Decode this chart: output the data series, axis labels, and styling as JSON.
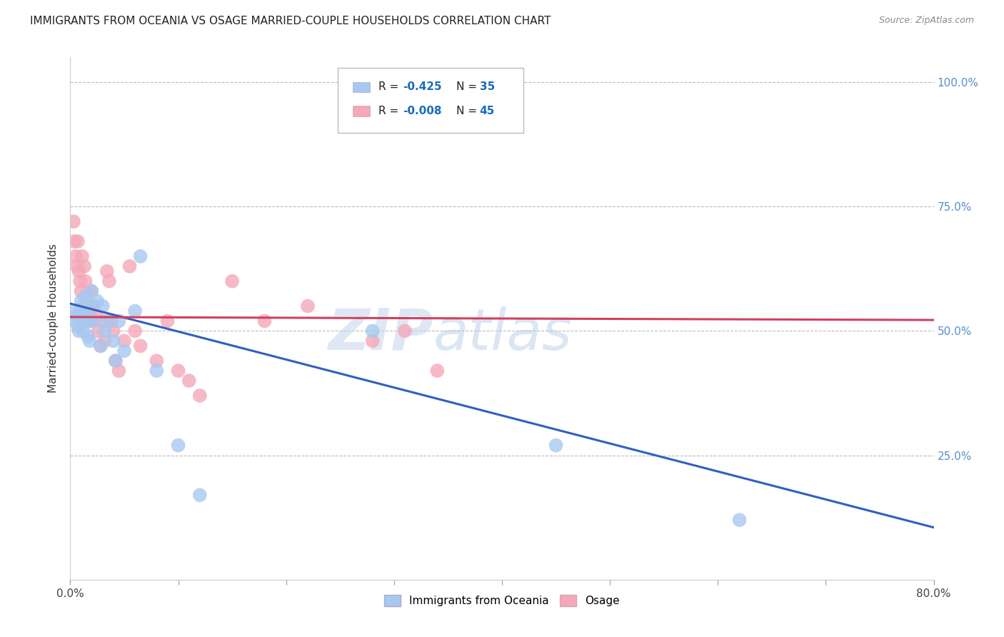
{
  "title": "IMMIGRANTS FROM OCEANIA VS OSAGE MARRIED-COUPLE HOUSEHOLDS CORRELATION CHART",
  "source": "Source: ZipAtlas.com",
  "ylabel": "Married-couple Households",
  "xlim": [
    0.0,
    0.8
  ],
  "ylim": [
    0.0,
    1.05
  ],
  "xticks": [
    0.0,
    0.1,
    0.2,
    0.3,
    0.4,
    0.5,
    0.6,
    0.7,
    0.8
  ],
  "xticklabels": [
    "0.0%",
    "",
    "",
    "",
    "",
    "",
    "",
    "",
    "80.0%"
  ],
  "yticks": [
    0.0,
    0.25,
    0.5,
    0.75,
    1.0
  ],
  "yticklabels_right": [
    "",
    "25.0%",
    "50.0%",
    "75.0%",
    "100.0%"
  ],
  "legend_label1": "Immigrants from Oceania",
  "legend_label2": "Osage",
  "blue_color": "#A8C8F0",
  "pink_color": "#F4A8B8",
  "blue_line_color": "#3060C0",
  "pink_line_color": "#D04060",
  "background_color": "#FFFFFF",
  "grid_color": "#BBBBBB",
  "watermark_zip": "ZIP",
  "watermark_atlas": "atlas",
  "blue_points_x": [
    0.003,
    0.005,
    0.006,
    0.007,
    0.008,
    0.009,
    0.01,
    0.011,
    0.012,
    0.013,
    0.014,
    0.015,
    0.016,
    0.017,
    0.018,
    0.019,
    0.02,
    0.022,
    0.025,
    0.028,
    0.03,
    0.032,
    0.035,
    0.04,
    0.042,
    0.045,
    0.05,
    0.06,
    0.065,
    0.08,
    0.1,
    0.12,
    0.28,
    0.45,
    0.62
  ],
  "blue_points_y": [
    0.54,
    0.52,
    0.53,
    0.51,
    0.5,
    0.54,
    0.56,
    0.52,
    0.5,
    0.55,
    0.57,
    0.53,
    0.49,
    0.52,
    0.48,
    0.55,
    0.58,
    0.52,
    0.56,
    0.47,
    0.55,
    0.5,
    0.52,
    0.48,
    0.44,
    0.52,
    0.46,
    0.54,
    0.65,
    0.42,
    0.27,
    0.17,
    0.5,
    0.27,
    0.12
  ],
  "pink_points_x": [
    0.003,
    0.004,
    0.005,
    0.006,
    0.007,
    0.008,
    0.009,
    0.01,
    0.011,
    0.012,
    0.013,
    0.014,
    0.015,
    0.016,
    0.017,
    0.018,
    0.019,
    0.02,
    0.022,
    0.024,
    0.026,
    0.028,
    0.03,
    0.032,
    0.034,
    0.036,
    0.038,
    0.04,
    0.042,
    0.045,
    0.05,
    0.055,
    0.06,
    0.065,
    0.08,
    0.09,
    0.1,
    0.11,
    0.12,
    0.15,
    0.18,
    0.22,
    0.28,
    0.31,
    0.34
  ],
  "pink_points_y": [
    0.72,
    0.68,
    0.65,
    0.63,
    0.68,
    0.62,
    0.6,
    0.58,
    0.65,
    0.55,
    0.63,
    0.6,
    0.57,
    0.55,
    0.52,
    0.53,
    0.58,
    0.52,
    0.55,
    0.53,
    0.5,
    0.47,
    0.52,
    0.48,
    0.62,
    0.6,
    0.52,
    0.5,
    0.44,
    0.42,
    0.48,
    0.63,
    0.5,
    0.47,
    0.44,
    0.52,
    0.42,
    0.4,
    0.37,
    0.6,
    0.52,
    0.55,
    0.48,
    0.5,
    0.42
  ],
  "blue_trendline_x": [
    0.0,
    0.8
  ],
  "blue_trendline_y": [
    0.555,
    0.105
  ],
  "pink_trendline_x": [
    0.0,
    0.8
  ],
  "pink_trendline_y": [
    0.528,
    0.522
  ]
}
